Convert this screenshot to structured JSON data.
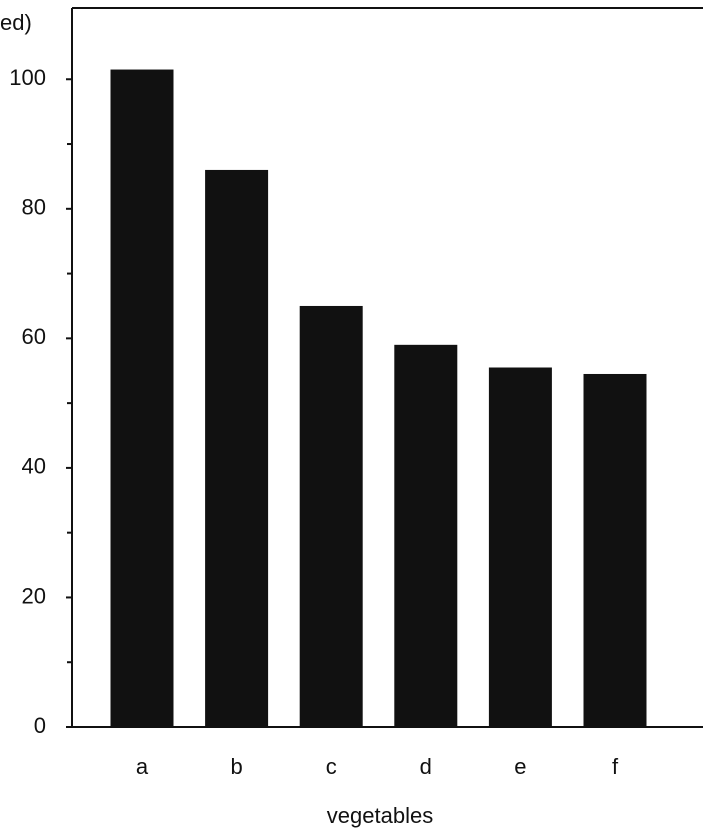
{
  "chart_data": {
    "type": "bar",
    "y_label": "ed)",
    "x_label": "vegetables",
    "categories": [
      "a",
      "b",
      "c",
      "d",
      "e",
      "f"
    ],
    "values": [
      101.5,
      86,
      65,
      59,
      55.5,
      54.5
    ],
    "color": "#111111",
    "ylim": [
      0,
      111
    ],
    "yticks": [
      0,
      20,
      40,
      60,
      80,
      100
    ],
    "minor_yticks": [
      10,
      30,
      50,
      70,
      90
    ]
  }
}
